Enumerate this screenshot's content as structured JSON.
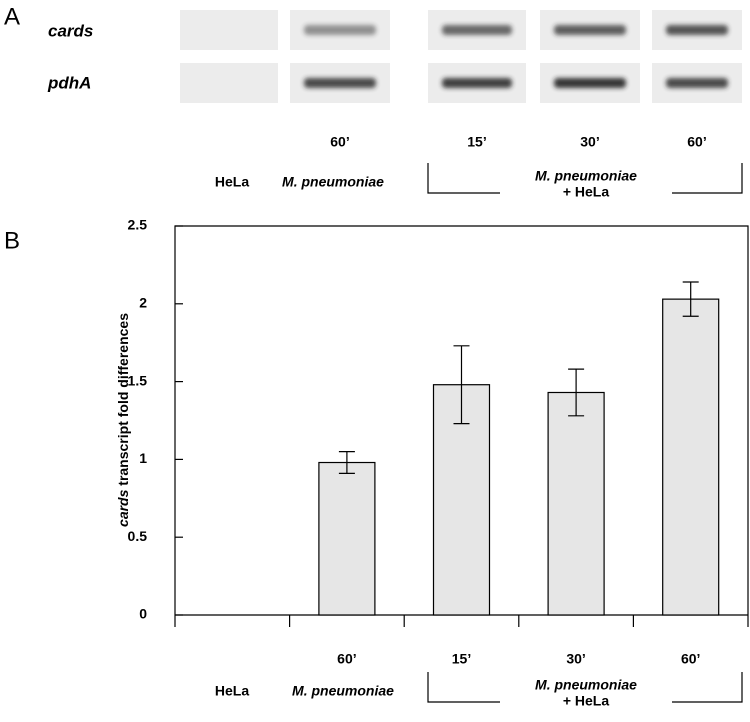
{
  "gel": {
    "panel_label": "A",
    "genes": [
      "cards",
      "pdhA"
    ],
    "lanes": [
      null,
      "60’",
      "15’",
      "30’",
      "60’"
    ],
    "groups": [
      [
        "HeLa"
      ],
      [
        "M. pneumoniae"
      ],
      [
        "M. pneumoniae",
        "+ HeLa"
      ]
    ]
  },
  "chart_data": {
    "type": "bar",
    "panel_label": "B",
    "ylabel": {
      "italic": "cards",
      "text": "transcript fold differences"
    },
    "categories": [
      null,
      "60’",
      "15’",
      "30’",
      "60’"
    ],
    "groups": [
      [
        "HeLa"
      ],
      [
        "M. pneumoniae"
      ],
      [
        "M. pneumoniae",
        "+ HeLa"
      ]
    ],
    "values": [
      null,
      0.98,
      1.48,
      1.43,
      2.03
    ],
    "errors": [
      null,
      0.07,
      0.25,
      0.15,
      0.11
    ],
    "color": "#e6e6e6",
    "ylim": [
      0,
      2.5
    ],
    "yticks": [
      0,
      0.5,
      1,
      1.5,
      2,
      2.5
    ]
  }
}
